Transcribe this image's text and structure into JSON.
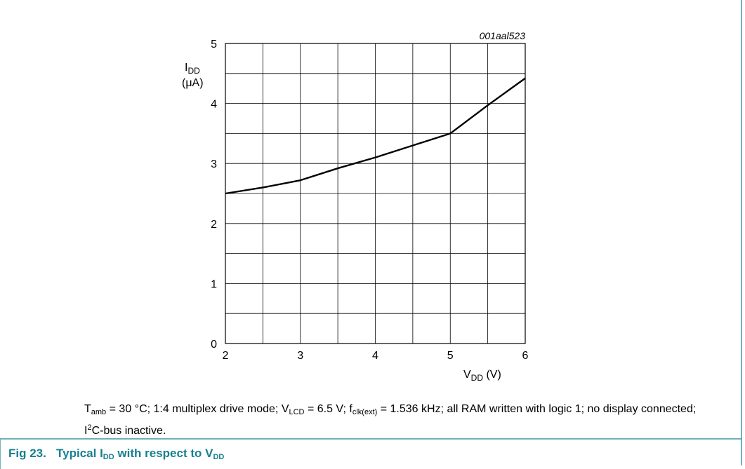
{
  "figure": {
    "id": "001aal523",
    "caption": {
      "t_sym": "T",
      "t_sub": "amb",
      "part1": " = 30 °C; 1:4 multiplex drive mode; ",
      "v_sym": "V",
      "v_sub": "LCD",
      "part2": " = 6.5 V; ",
      "f_sym": "f",
      "f_sub": "clk(ext)",
      "part3": " = 1.536 kHz; all RAM written with logic 1; no display connected; ",
      "i_sym": "I",
      "i_sup": "2",
      "part4": "C-bus inactive."
    },
    "title": {
      "prefix": "Fig 23.",
      "text1": "Typical I",
      "sub1": "DD",
      "text2": " with respect to V",
      "sub2": "DD"
    },
    "colors": {
      "title": "#17808f",
      "frame": "#17808f",
      "line": "#000000"
    }
  },
  "chart_data": {
    "type": "line",
    "xlabel": {
      "sym": "V",
      "sub": "DD",
      "unit": " (V)"
    },
    "ylabel": {
      "sym": "I",
      "sub": "DD",
      "unit": "(μA)"
    },
    "xlim": [
      2,
      6
    ],
    "ylim": [
      0,
      5
    ],
    "xticks": [
      "2",
      "3",
      "4",
      "5",
      "6"
    ],
    "yticks": [
      "0",
      "1",
      "2",
      "3",
      "4",
      "5"
    ],
    "x_minor_step": 0.5,
    "y_minor_step": 0.5,
    "grid": true,
    "series": [
      {
        "x": [
          2,
          2.5,
          3,
          3.5,
          4,
          4.5,
          5,
          5.5,
          6
        ],
        "y": [
          2.5,
          2.6,
          2.72,
          2.92,
          3.1,
          3.3,
          3.5,
          3.97,
          4.42
        ]
      }
    ]
  }
}
